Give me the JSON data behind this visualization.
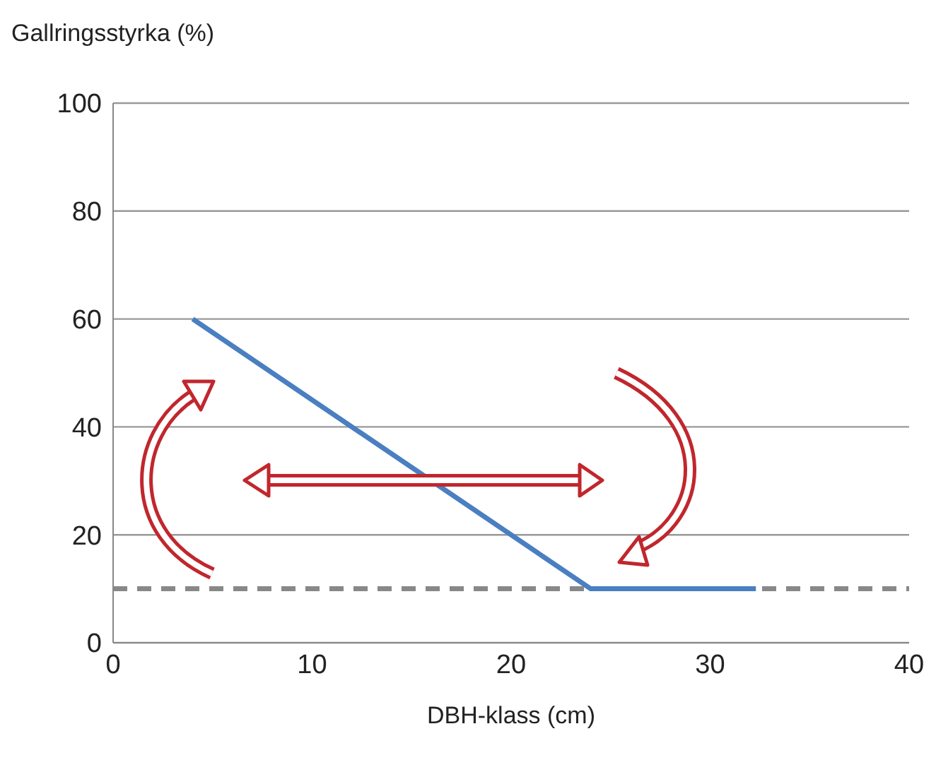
{
  "chart_data": {
    "type": "line",
    "ylabel": "Gallringsstyrka (%)",
    "xlabel": "DBH-klass (cm)",
    "series": [
      {
        "color": "#4a7fc1",
        "x": [
          4,
          24,
          32.3
        ],
        "values": [
          60,
          10,
          10
        ]
      }
    ],
    "xlim": [
      0,
      40
    ],
    "xticks": [
      0,
      10,
      20,
      30,
      40
    ],
    "ylim": [
      0,
      100
    ],
    "yticks": [
      0,
      20,
      40,
      60,
      80,
      100
    ],
    "grid": "y",
    "marker": "none",
    "line_style": "solid",
    "ref_lines": [
      {
        "axis": "y",
        "value": 10,
        "color": "#888888",
        "line_style": "dashed"
      }
    ]
  }
}
